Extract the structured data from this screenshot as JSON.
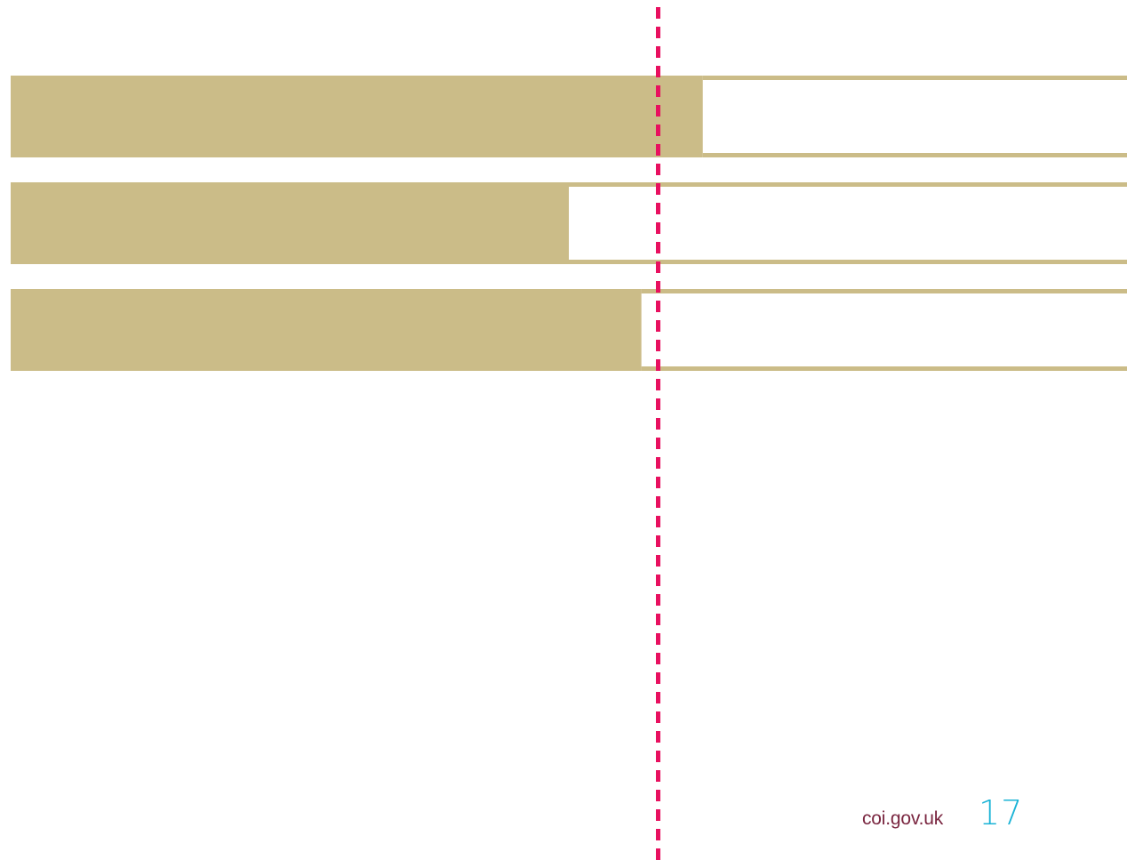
{
  "chart_data": {
    "type": "bar",
    "orientation": "horizontal",
    "categories": [
      "",
      "",
      ""
    ],
    "values": [
      62,
      50,
      56.5
    ],
    "xlim": [
      0,
      100
    ],
    "reference_line": {
      "value": 58,
      "style": "dashed"
    },
    "grid": false,
    "legend": "none",
    "title": "",
    "xlabel": "",
    "ylabel": ""
  },
  "colors": {
    "bar_fill": "#cbbc88",
    "reference_line": "#e8105f",
    "site_url": "#7a2640",
    "page_number": "#1ab3d6",
    "background": "#ffffff"
  },
  "footer": {
    "site_url": "coi.gov.uk",
    "page_number": "17"
  }
}
